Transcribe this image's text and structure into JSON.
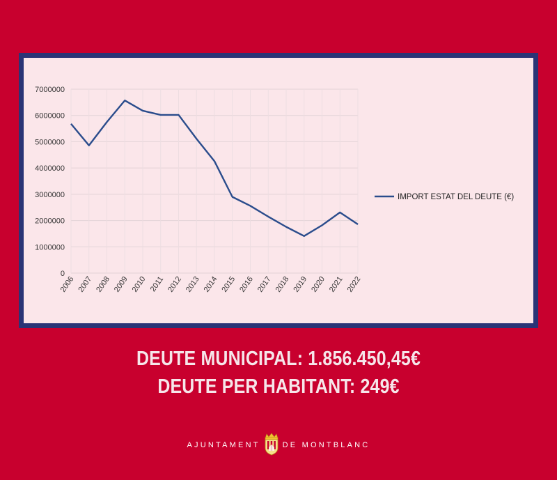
{
  "chart_data": {
    "type": "line",
    "x": [
      "2006",
      "2007",
      "2008",
      "2009",
      "2010",
      "2011",
      "2012",
      "2013",
      "2014",
      "2015",
      "2016",
      "2017",
      "2018",
      "2019",
      "2020",
      "2021",
      "2022"
    ],
    "series": [
      {
        "name": "IMPORT ESTAT DEL DEUTE (€)",
        "values": [
          5680000,
          4860000,
          5750000,
          6570000,
          6180000,
          6020000,
          6020000,
          5110000,
          4260000,
          2900000,
          2560000,
          2150000,
          1760000,
          1410000,
          1820000,
          2310000,
          1856450
        ]
      }
    ],
    "yticks": [
      "0",
      "1000000",
      "2000000",
      "3000000",
      "4000000",
      "5000000",
      "6000000",
      "7000000"
    ],
    "ylim": [
      0,
      7000000
    ],
    "grid": true,
    "legend_position": "right",
    "line_color": "#2a4c8c"
  },
  "summary": {
    "line1": "DEUTE MUNICIPAL: 1.856.450,45€",
    "line2": "DEUTE PER HABITANT: 249€"
  },
  "footer": {
    "left": "AJUNTAMENT",
    "right": "DE MONTBLANC"
  },
  "colors": {
    "background": "#c8002e",
    "frame": "#2a3476",
    "panel": "#fbe6ea",
    "headline": "#f6e6ea"
  }
}
